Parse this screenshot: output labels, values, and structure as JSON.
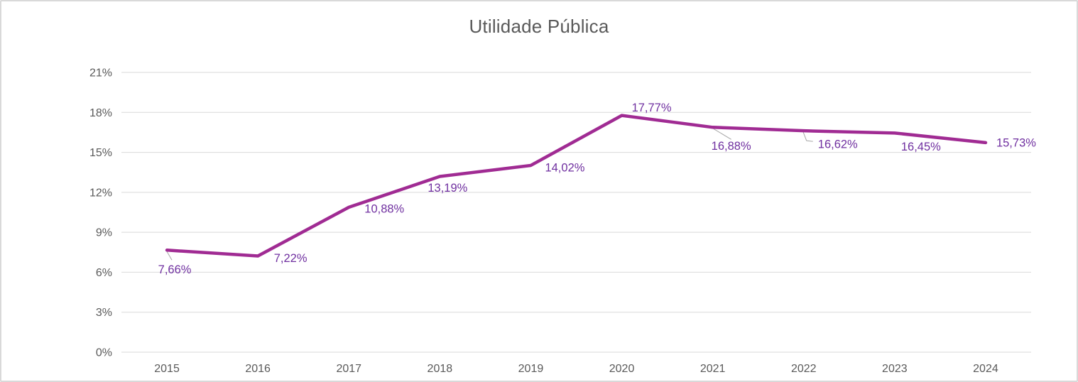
{
  "title": "Utilidade Pública",
  "colors": {
    "series_line": "#A02B93",
    "data_label": "#7030A0",
    "axis_text": "#595959",
    "gridline": "#D9D9D9",
    "leader_line": "#A6A6A6",
    "chart_border": "#D9D9D9",
    "background": "#FFFFFF",
    "title_text": "#595959"
  },
  "chart_data": {
    "type": "line",
    "title": "Utilidade Pública",
    "categories": [
      "2015",
      "2016",
      "2017",
      "2018",
      "2019",
      "2020",
      "2021",
      "2022",
      "2023",
      "2024"
    ],
    "values": [
      7.66,
      7.22,
      10.88,
      13.19,
      14.02,
      17.77,
      16.88,
      16.62,
      16.45,
      15.73
    ],
    "value_labels": [
      "7,66%",
      "7,22%",
      "10,88%",
      "13,19%",
      "14,02%",
      "17,77%",
      "16,88%",
      "16,62%",
      "16,45%",
      "15,73%"
    ],
    "y_tick_labels": [
      "0%",
      "3%",
      "6%",
      "9%",
      "12%",
      "15%",
      "18%",
      "21%"
    ],
    "y_tick_values": [
      0,
      3,
      6,
      9,
      12,
      15,
      18,
      21
    ],
    "ylim": [
      0,
      21
    ],
    "xlabel": "",
    "ylabel": "",
    "grid": true,
    "legend": "none"
  }
}
